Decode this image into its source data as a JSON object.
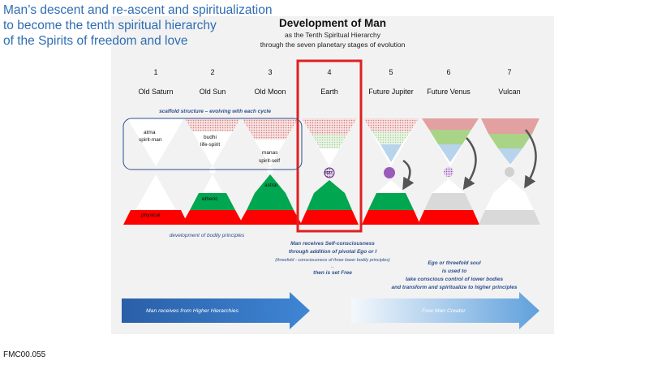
{
  "slide": {
    "title_lines": [
      "Man’s descent and re-ascent and spiritualization",
      "to become the tenth spiritual hierarchy",
      "of the Spirits of freedom and love"
    ],
    "code": "FMC00.055"
  },
  "diagram": {
    "title": "Development of Man",
    "subtitle_1": "as the Tenth Spiritual Hierarchy",
    "subtitle_2": "through the seven planetary stages of evolution",
    "stages": [
      {
        "number": "1",
        "name": "Old Saturn"
      },
      {
        "number": "2",
        "name": "Old Sun"
      },
      {
        "number": "3",
        "name": "Old Moon"
      },
      {
        "number": "4",
        "name": "Earth"
      },
      {
        "number": "5",
        "name": "Future Jupiter"
      },
      {
        "number": "6",
        "name": "Future Venus"
      },
      {
        "number": "7",
        "name": "Vulcan"
      }
    ],
    "scaffold_note": "scaffold structure – evolving with each cycle",
    "labels": {
      "atma": "atma",
      "spirit_man": "spirit-man",
      "budhi": "budhi",
      "life_spirit": "life-spirit",
      "manas": "manas",
      "spirit_self": "spirit-self",
      "ego": "ego",
      "astral": "astral",
      "etheric": "etheric",
      "physical": "physical"
    },
    "bodily_note": "development of bodily principles",
    "earth_note": {
      "line1": "Man receives Self-consciousness",
      "line2": "through addition of pivotal Ego or I",
      "line3": "(threefold - consciousness of three lower bodily principles)",
      "line4": "..",
      "line5": "then is set Free"
    },
    "soul_note": {
      "line1": "Ego or threefold soul",
      "line2": "is used to",
      "line3": "take conscious control of lower bodies",
      "line4": "and transform and spiritualize to higher principles"
    },
    "arrows": {
      "left": "Man receives from Higher Hierarchies",
      "right": "Free Man Creator"
    },
    "colors": {
      "physical_red": "#ff0000",
      "etheric_green": "#00a650",
      "highlight_red": "#e02020",
      "arrow_blue": "#3a78c8",
      "title_blue": "#2e6db4"
    }
  }
}
